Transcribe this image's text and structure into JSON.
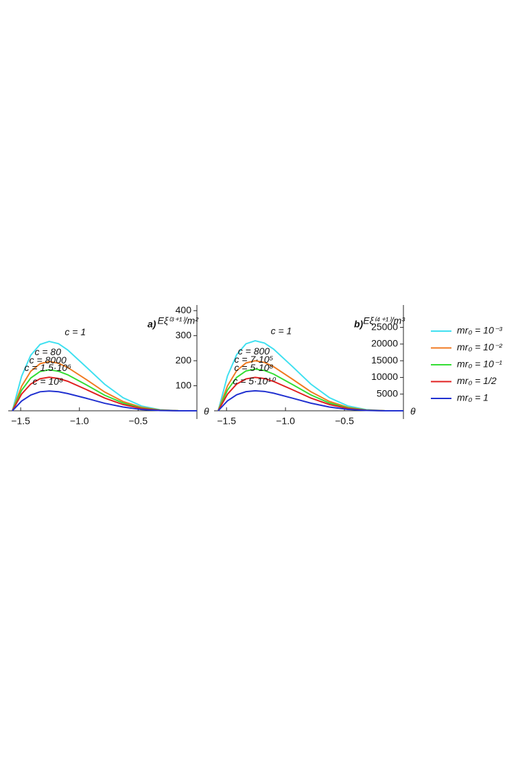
{
  "chart_data": [
    {
      "type": "line",
      "panel_label": "a)",
      "y_label": "Eξ⁽³⁺¹⁾/m²",
      "x_label": "θ",
      "x": [
        -1.571,
        -1.492,
        -1.414,
        -1.335,
        -1.257,
        -1.178,
        -1.1,
        -0.942,
        -0.785,
        -0.628,
        -0.471,
        -0.314,
        -0.157,
        0
      ],
      "xlim": [
        -1.5708,
        0
      ],
      "xticks": [
        {
          "value": -1.5,
          "label": "−1.5"
        },
        {
          "value": -1.0,
          "label": "−1.0"
        },
        {
          "value": -0.5,
          "label": "−0.5"
        }
      ],
      "ylim": [
        0,
        450
      ],
      "yticks": [
        100,
        200,
        300,
        400
      ],
      "legend": "right",
      "series": [
        {
          "name": "mr₀ = 10⁻³",
          "color": "#3fe0f0",
          "values": [
            0,
            138,
            222,
            265,
            277,
            268,
            243,
            175,
            106,
            52,
            19,
            4,
            0.3,
            0
          ]
        },
        {
          "name": "mr₀ = 10⁻²",
          "color": "#f07a20",
          "values": [
            0,
            98,
            158,
            188,
            197,
            190,
            173,
            125,
            75,
            37,
            14,
            3,
            0.2,
            0
          ]
        },
        {
          "name": "mr₀ = 10⁻¹",
          "color": "#33dd33",
          "values": [
            0,
            82,
            131,
            157,
            164,
            158,
            144,
            104,
            62,
            31,
            11,
            3,
            0.2,
            0
          ]
        },
        {
          "name": "mr₀ = 1/2",
          "color": "#e02020",
          "values": [
            0,
            67,
            107,
            128,
            134,
            129,
            118,
            85,
            51,
            25,
            9,
            2,
            0.1,
            0
          ]
        },
        {
          "name": "mr₀ = 1",
          "color": "#2030d0",
          "values": [
            0,
            39,
            63,
            76,
            79,
            76,
            69,
            50,
            30,
            15,
            5,
            1,
            0.1,
            0
          ]
        }
      ],
      "curve_labels": [
        "c = 1",
        "c = 80",
        "c = 8000",
        "c = 1.5·10⁶",
        "c = 10⁸"
      ]
    },
    {
      "type": "line",
      "panel_label": "b)",
      "y_label": "Eξ⁽⁴⁺¹⁾/m³",
      "x_label": "θ",
      "x": [
        -1.571,
        -1.492,
        -1.414,
        -1.335,
        -1.257,
        -1.178,
        -1.1,
        -0.942,
        -0.785,
        -0.628,
        -0.471,
        -0.314,
        -0.157,
        0
      ],
      "xlim": [
        -1.5708,
        0
      ],
      "xticks": [
        {
          "value": -1.5,
          "label": "−1.5"
        },
        {
          "value": -1.0,
          "label": "−1.0"
        },
        {
          "value": -0.5,
          "label": "−0.5"
        }
      ],
      "ylim": [
        0,
        28000
      ],
      "yticks": [
        5000,
        10000,
        15000,
        20000,
        25000
      ],
      "series": [
        {
          "color": "#3fe0f0",
          "values": [
            0,
            10440,
            16820,
            20080,
            21000,
            20290,
            18460,
            13290,
            8000,
            3940,
            1450,
            330,
            20,
            0
          ]
        },
        {
          "color": "#f07a20",
          "values": [
            0,
            7460,
            12020,
            14340,
            15000,
            14490,
            13190,
            9500,
            5720,
            2810,
            1040,
            230,
            20,
            0
          ]
        },
        {
          "color": "#33dd33",
          "values": [
            0,
            6210,
            10010,
            11950,
            12500,
            12080,
            10990,
            7910,
            4760,
            2340,
            870,
            200,
            10,
            0
          ]
        },
        {
          "color": "#e02020",
          "values": [
            0,
            4970,
            8010,
            9560,
            10000,
            9660,
            8790,
            6330,
            3810,
            1880,
            690,
            160,
            10,
            0
          ]
        },
        {
          "color": "#2030d0",
          "values": [
            0,
            2980,
            4810,
            5740,
            6000,
            5800,
            5270,
            3800,
            2290,
            1130,
            420,
            90,
            10,
            0
          ]
        }
      ],
      "curve_labels": [
        "c = 1",
        "c = 800",
        "c = 7·10⁵",
        "c = 5·10⁸",
        "c = 5·10¹⁰"
      ]
    }
  ]
}
